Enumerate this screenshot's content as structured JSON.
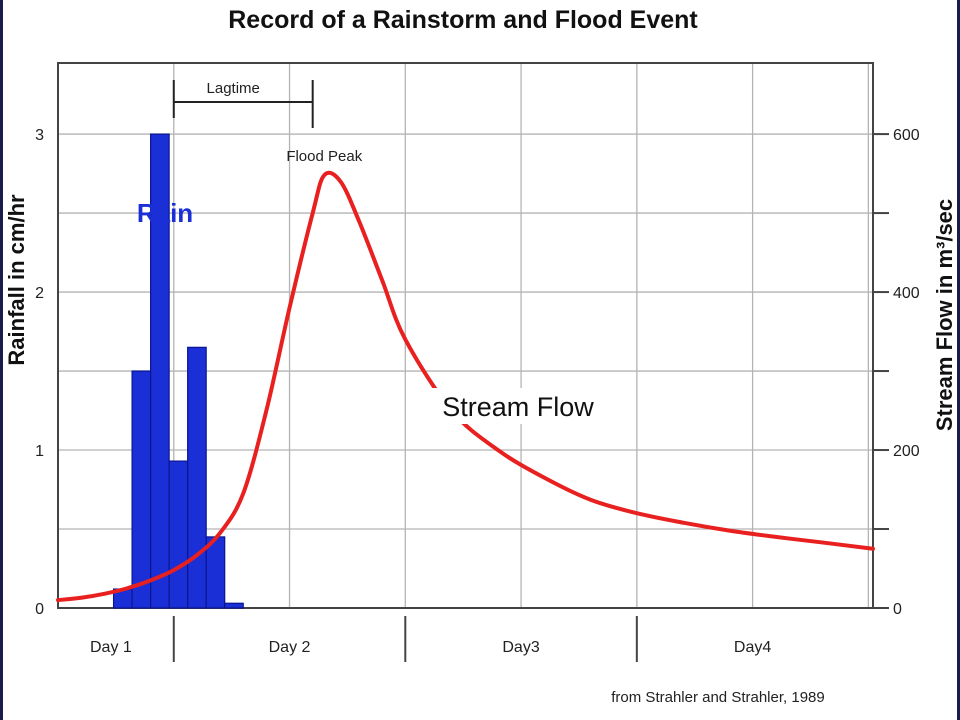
{
  "chart_data": {
    "type": "bar+line",
    "title": "Record of a Rainstorm and Flood Event",
    "ylabel_left": "Rainfall in cm/hr",
    "ylabel_right": "Stream Flow in m³/sec",
    "y_left_ticks": [
      "0",
      "1",
      "2",
      "3"
    ],
    "y_left_range": [
      0,
      3.45
    ],
    "y_right_ticks": [
      "0",
      "200",
      "400",
      "600"
    ],
    "y_right_range": [
      0,
      690
    ],
    "x_range_days": [
      0.5,
      4.02
    ],
    "x_day_labels": [
      "Day 1",
      "Day 2",
      "Day3",
      "Day4"
    ],
    "rain": {
      "label": "Rain",
      "color": "#1a2fd6",
      "bar_width_days": 0.08,
      "bars": [
        {
          "start": 0.74,
          "value": 0.12
        },
        {
          "start": 0.82,
          "value": 1.5
        },
        {
          "start": 0.9,
          "value": 3.0
        },
        {
          "start": 0.98,
          "value": 0.93
        },
        {
          "start": 1.06,
          "value": 1.65
        },
        {
          "start": 1.14,
          "value": 0.45
        },
        {
          "start": 1.22,
          "value": 0.03
        }
      ]
    },
    "stream_flow": {
      "label": "Stream Flow",
      "color": "#e8201f",
      "x": [
        0.5,
        0.6,
        0.7,
        0.8,
        0.9,
        1.0,
        1.1,
        1.2,
        1.3,
        1.4,
        1.5,
        1.6,
        1.65,
        1.72,
        1.8,
        1.9,
        2.0,
        2.2,
        2.4,
        2.6,
        2.8,
        3.0,
        3.2,
        3.4,
        3.6,
        3.8,
        4.02
      ],
      "y": [
        10,
        13,
        18,
        25,
        35,
        48,
        67,
        95,
        145,
        250,
        380,
        500,
        548,
        540,
        490,
        415,
        340,
        250,
        200,
        165,
        137,
        120,
        108,
        98,
        90,
        83,
        75
      ]
    },
    "annotations": {
      "lagtime": "Lagtime",
      "lagtime_from_day": 1.0,
      "lagtime_to_day": 1.6,
      "flood_peak": "Flood Peak"
    },
    "source": "from Strahler and Strahler, 1989",
    "grid": true
  }
}
